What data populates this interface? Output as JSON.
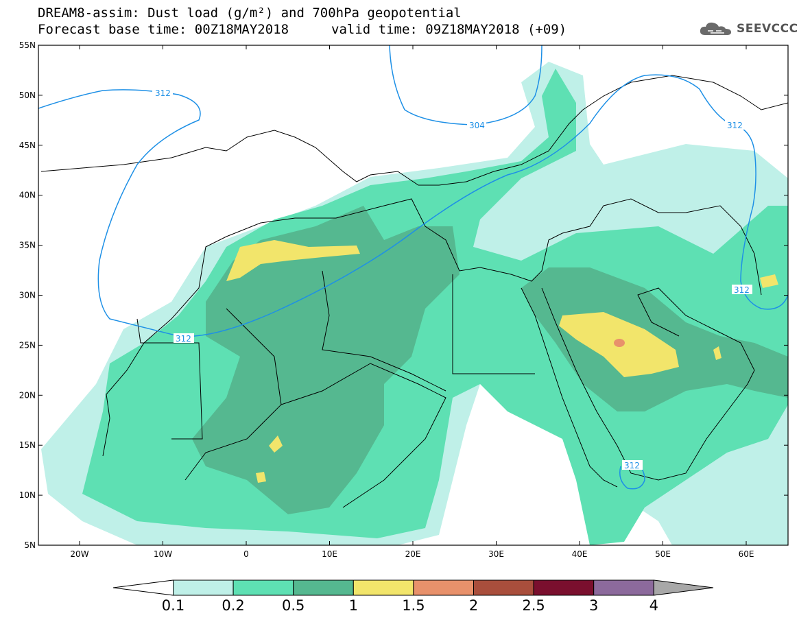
{
  "header": {
    "title_line1": "DREAM8-assim: Dust load (g/m²) and 700hPa geopotential",
    "title_line2": "Forecast base time: 00Z18MAY2018",
    "valid_time": "valid time: 09Z18MAY2018 (+09)",
    "logo_text": "SEEVCCC"
  },
  "axes": {
    "lat_labels": [
      "55N",
      "50N",
      "45N",
      "40N",
      "35N",
      "30N",
      "25N",
      "20N",
      "15N",
      "10N",
      "5N"
    ],
    "lon_labels": [
      "20W",
      "10W",
      "0",
      "10E",
      "20E",
      "30E",
      "40E",
      "50E",
      "60E"
    ]
  },
  "contour_labels": [
    "312",
    "304",
    "312",
    "312",
    "312",
    "312"
  ],
  "colorbar": {
    "tick_labels": [
      "0.1",
      "0.2",
      "0.5",
      "1",
      "1.5",
      "2",
      "2.5",
      "3",
      "4"
    ],
    "colors": [
      "#bff0e8",
      "#5ee0b3",
      "#55b890",
      "#f2e56b",
      "#e8916b",
      "#a94e3c",
      "#7a0f2e",
      "#8c6a9c",
      "#a8a8a8"
    ]
  }
}
